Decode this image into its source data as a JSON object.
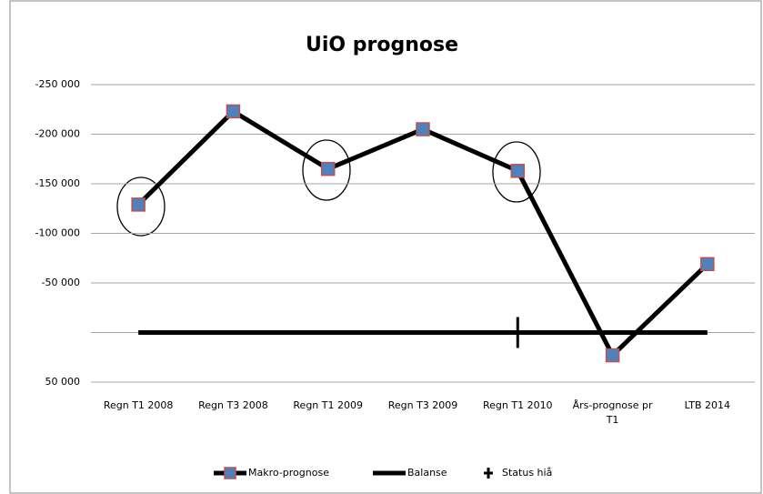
{
  "chart_data": {
    "type": "line",
    "title": "UiO prognose",
    "categories": [
      "Regn T1 2008",
      "Regn T3 2008",
      "Regn T1 2009",
      "Regn T3 2009",
      "Regn T1 2010",
      "Års-prognose pr T1",
      "LTB 2014"
    ],
    "series": [
      {
        "name": "Makro-prognose",
        "color": "#000000",
        "marker_color": "#4f81bd",
        "marker_edge": "#c0504d",
        "marker": "square",
        "values": [
          -129000,
          -223000,
          -165000,
          -205000,
          -163000,
          23000,
          -69000
        ]
      },
      {
        "name": "Balanse",
        "color": "#000000",
        "marker": "none",
        "values": [
          0,
          0,
          0,
          0,
          0,
          0,
          0
        ]
      },
      {
        "name": "Status hiå",
        "color": "#000000",
        "marker": "cross",
        "values": [
          null,
          null,
          null,
          null,
          0,
          null,
          null
        ]
      }
    ],
    "ylim": [
      -250000,
      50000
    ],
    "y_inverted": true,
    "yticks": [
      {
        "value": -250000,
        "label": "-250 000"
      },
      {
        "value": -200000,
        "label": "-200 000"
      },
      {
        "value": -150000,
        "label": "-150 000"
      },
      {
        "value": -100000,
        "label": "-100 000"
      },
      {
        "value": -50000,
        "label": "-50 000"
      },
      {
        "value": 0,
        "label": null
      },
      {
        "value": 50000,
        "label": "50 000"
      }
    ],
    "grid": true,
    "legend": "bottom"
  }
}
